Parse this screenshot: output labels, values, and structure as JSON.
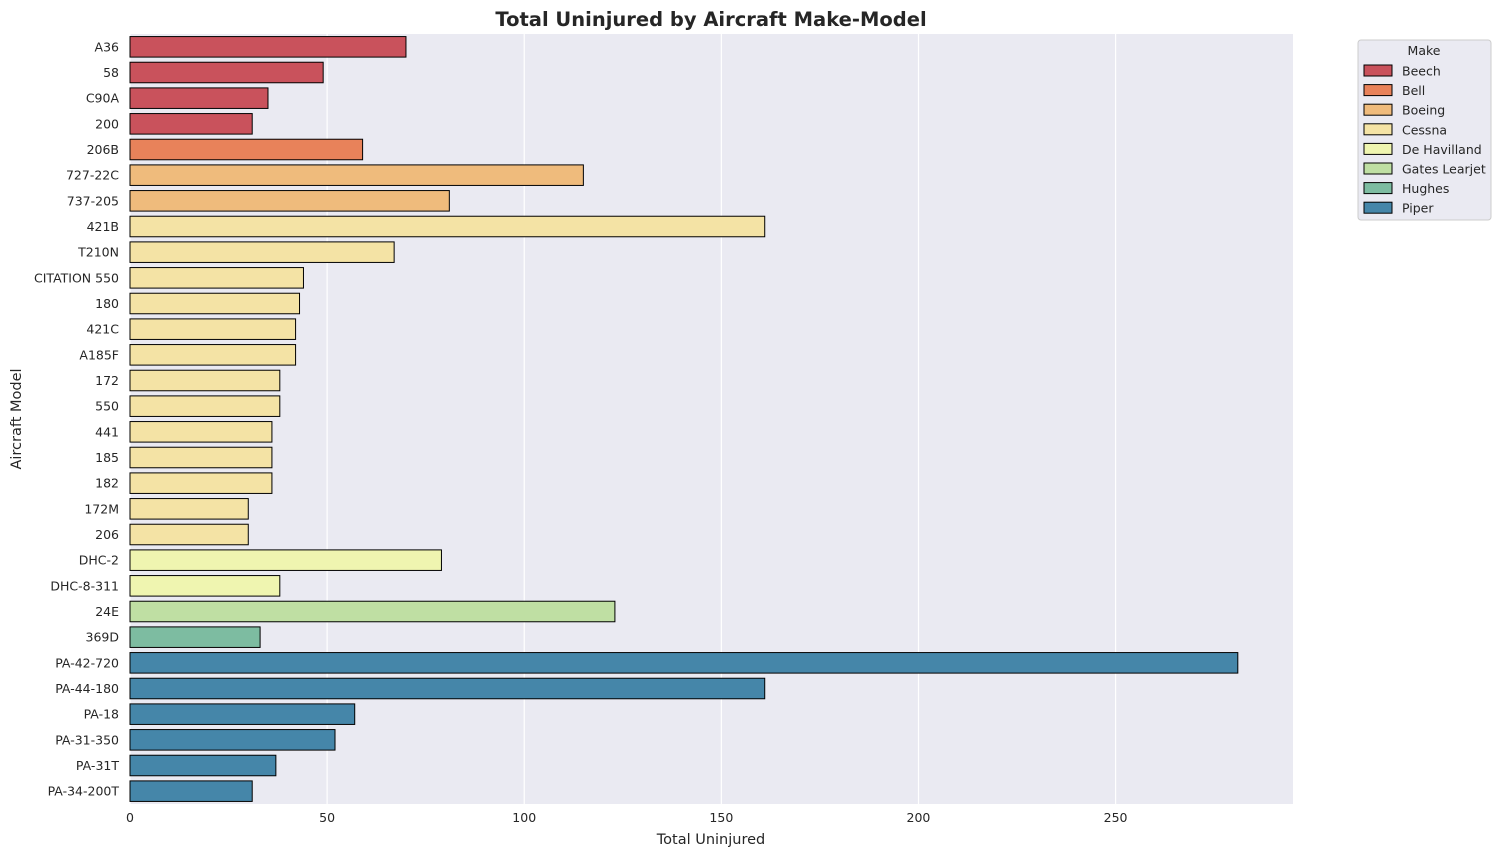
{
  "chart_data": {
    "type": "bar",
    "orientation": "horizontal",
    "title": "Total Uninjured by Aircraft Make-Model",
    "xlabel": "Total Uninjured",
    "ylabel": "Aircraft Model",
    "xlim": [
      0,
      295
    ],
    "xticks": [
      0,
      50,
      100,
      150,
      200,
      250
    ],
    "grid": true,
    "legend": {
      "title": "Make",
      "placement": "outside-top-right"
    },
    "makes": [
      {
        "name": "Beech",
        "color": "#c9525c"
      },
      {
        "name": "Bell",
        "color": "#e8825a"
      },
      {
        "name": "Boeing",
        "color": "#efbb7c"
      },
      {
        "name": "Cessna",
        "color": "#f4e3a5"
      },
      {
        "name": "De Havilland",
        "color": "#eff5b0"
      },
      {
        "name": "Gates Learjet",
        "color": "#bfdfa3"
      },
      {
        "name": "Hughes",
        "color": "#7dbca1"
      },
      {
        "name": "Piper",
        "color": "#4586a9"
      }
    ],
    "bars": [
      {
        "model": "A36",
        "make": "Beech",
        "value": 70
      },
      {
        "model": "58",
        "make": "Beech",
        "value": 49
      },
      {
        "model": "C90A",
        "make": "Beech",
        "value": 35
      },
      {
        "model": "200",
        "make": "Beech",
        "value": 31
      },
      {
        "model": "206B",
        "make": "Bell",
        "value": 59
      },
      {
        "model": "727-22C",
        "make": "Boeing",
        "value": 115
      },
      {
        "model": "737-205",
        "make": "Boeing",
        "value": 81
      },
      {
        "model": "421B",
        "make": "Cessna",
        "value": 161
      },
      {
        "model": "T210N",
        "make": "Cessna",
        "value": 67
      },
      {
        "model": "CITATION 550",
        "make": "Cessna",
        "value": 44
      },
      {
        "model": "180",
        "make": "Cessna",
        "value": 43
      },
      {
        "model": "421C",
        "make": "Cessna",
        "value": 42
      },
      {
        "model": "A185F",
        "make": "Cessna",
        "value": 42
      },
      {
        "model": "172",
        "make": "Cessna",
        "value": 38
      },
      {
        "model": "550",
        "make": "Cessna",
        "value": 38
      },
      {
        "model": "441",
        "make": "Cessna",
        "value": 36
      },
      {
        "model": "185",
        "make": "Cessna",
        "value": 36
      },
      {
        "model": "182",
        "make": "Cessna",
        "value": 36
      },
      {
        "model": "172M",
        "make": "Cessna",
        "value": 30
      },
      {
        "model": "206",
        "make": "Cessna",
        "value": 30
      },
      {
        "model": "DHC-2",
        "make": "De Havilland",
        "value": 79
      },
      {
        "model": "DHC-8-311",
        "make": "De Havilland",
        "value": 38
      },
      {
        "model": "24E",
        "make": "Gates Learjet",
        "value": 123
      },
      {
        "model": "369D",
        "make": "Hughes",
        "value": 33
      },
      {
        "model": "PA-42-720",
        "make": "Piper",
        "value": 281
      },
      {
        "model": "PA-44-180",
        "make": "Piper",
        "value": 161
      },
      {
        "model": "PA-18",
        "make": "Piper",
        "value": 57
      },
      {
        "model": "PA-31-350",
        "make": "Piper",
        "value": 52
      },
      {
        "model": "PA-31T",
        "make": "Piper",
        "value": 37
      },
      {
        "model": "PA-34-200T",
        "make": "Piper",
        "value": 31
      }
    ]
  }
}
